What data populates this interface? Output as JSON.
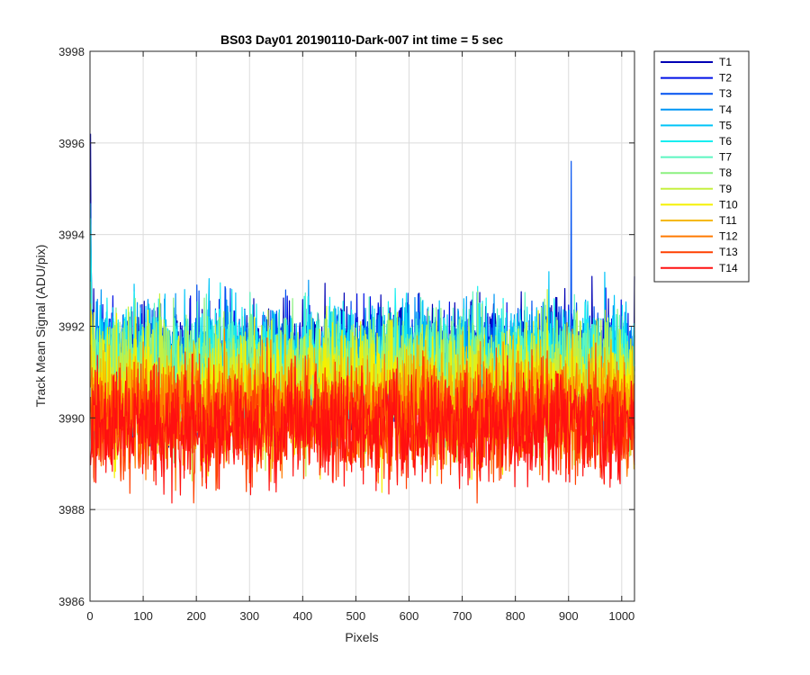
{
  "chart_data": {
    "type": "line",
    "title": "BS03 Day01 20190110-Dark-007 int time = 5 sec",
    "xlabel": "Pixels",
    "ylabel": "Track Mean Signal (ADU/pix)",
    "xlim": [
      0,
      1024
    ],
    "ylim": [
      3986,
      3998
    ],
    "xticks": [
      0,
      100,
      200,
      300,
      400,
      500,
      600,
      700,
      800,
      900,
      1000
    ],
    "yticks": [
      3986,
      3988,
      3990,
      3992,
      3994,
      3996,
      3998
    ],
    "grid": true,
    "legend_position": "outside-top-right",
    "series": [
      {
        "name": "T1",
        "color": "#0000b4",
        "mean": 3991.2,
        "spread": 1.1
      },
      {
        "name": "T2",
        "color": "#0010e6",
        "mean": 3991.1,
        "spread": 1.1
      },
      {
        "name": "T3",
        "color": "#0050f0",
        "mean": 3991.0,
        "spread": 1.1
      },
      {
        "name": "T4",
        "color": "#0096f5",
        "mean": 3991.1,
        "spread": 1.1
      },
      {
        "name": "T5",
        "color": "#00c4f8",
        "mean": 3991.2,
        "spread": 1.1
      },
      {
        "name": "T6",
        "color": "#18eef0",
        "mean": 3991.1,
        "spread": 1.1
      },
      {
        "name": "T7",
        "color": "#5cf6c0",
        "mean": 3991.0,
        "spread": 1.1
      },
      {
        "name": "T8",
        "color": "#8cf080",
        "mean": 3990.9,
        "spread": 1.1
      },
      {
        "name": "T9",
        "color": "#c6f040",
        "mean": 3990.7,
        "spread": 1.1
      },
      {
        "name": "T10",
        "color": "#f5f000",
        "mean": 3990.5,
        "spread": 1.1
      },
      {
        "name": "T11",
        "color": "#f5b800",
        "mean": 3990.3,
        "spread": 1.0
      },
      {
        "name": "T12",
        "color": "#ff7a00",
        "mean": 3990.1,
        "spread": 1.0
      },
      {
        "name": "T13",
        "color": "#ff4000",
        "mean": 3989.9,
        "spread": 1.0
      },
      {
        "name": "T14",
        "color": "#ff1010",
        "mean": 3989.8,
        "spread": 1.0
      }
    ],
    "annotations": {
      "peak_first_pixel": 3996.2,
      "max_outlier_x": 905,
      "max_outlier_y": 3995.6
    }
  }
}
